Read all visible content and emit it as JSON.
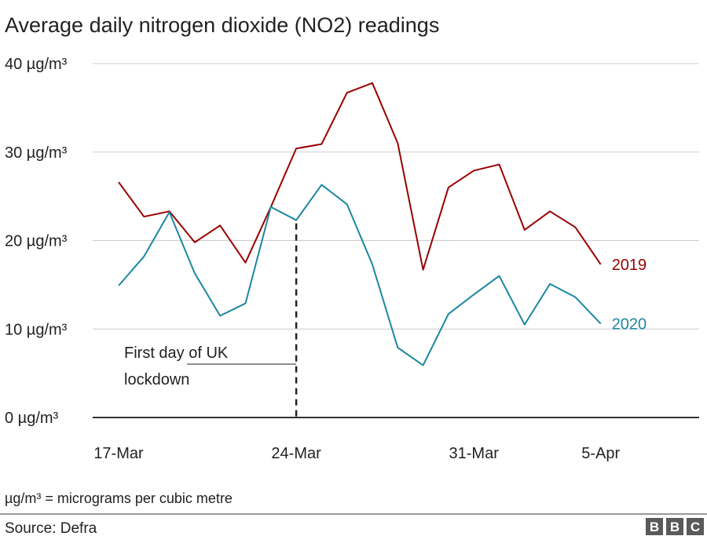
{
  "chart_data": {
    "type": "line",
    "title": "Average daily nitrogen dioxide (NO2) readings",
    "unit_note": "µg/m³ = micrograms per cubic metre",
    "source": "Source: Defra",
    "logo": "BBC",
    "ylim": [
      0,
      40
    ],
    "yticks": [
      {
        "value": 0,
        "label": "0 µg/m³"
      },
      {
        "value": 10,
        "label": "10 µg/m³"
      },
      {
        "value": 20,
        "label": "20 µg/m³"
      },
      {
        "value": 30,
        "label": "30 µg/m³"
      },
      {
        "value": 40,
        "label": "40 µg/m³"
      }
    ],
    "x": [
      "17-Mar",
      "18-Mar",
      "19-Mar",
      "20-Mar",
      "21-Mar",
      "22-Mar",
      "23-Mar",
      "24-Mar",
      "25-Mar",
      "26-Mar",
      "27-Mar",
      "28-Mar",
      "29-Mar",
      "30-Mar",
      "31-Mar",
      "1-Apr",
      "2-Apr",
      "3-Apr",
      "4-Apr",
      "5-Apr"
    ],
    "xticks": [
      "17-Mar",
      "24-Mar",
      "31-Mar",
      "5-Apr"
    ],
    "grid": true,
    "series": [
      {
        "name": "2019",
        "color": "#990000",
        "values": [
          26.6,
          22.7,
          23.3,
          19.8,
          21.7,
          17.5,
          23.8,
          30.4,
          30.9,
          36.7,
          37.8,
          31.0,
          16.7,
          26.0,
          27.9,
          28.6,
          21.2,
          23.3,
          21.5,
          17.3
        ]
      },
      {
        "name": "2020",
        "color": "#1c87a1",
        "values": [
          14.9,
          18.2,
          23.2,
          16.3,
          11.5,
          12.9,
          23.8,
          22.3,
          26.3,
          24.1,
          17.3,
          7.9,
          5.9,
          11.7,
          13.9,
          16.0,
          10.5,
          15.1,
          13.6,
          10.6
        ]
      }
    ],
    "annotation": {
      "x": "24-Mar",
      "lines": [
        "First day of UK",
        "lockdown"
      ]
    }
  }
}
